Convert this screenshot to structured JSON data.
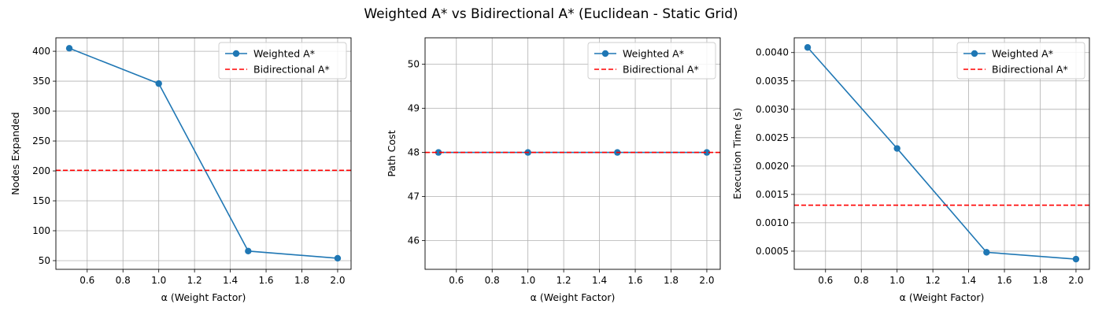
{
  "title": "Weighted A* vs Bidirectional A* (Euclidean - Static Grid)",
  "colors": {
    "weighted": "#1f77b4",
    "bidirectional": "#ff0000",
    "grid": "#b0b0b0"
  },
  "chart_data": [
    {
      "type": "line",
      "xlabel": "α (Weight Factor)",
      "ylabel": "Nodes Expanded",
      "xlim": [
        0.425,
        2.075
      ],
      "ylim": [
        35.5,
        422.5
      ],
      "xticks": [
        0.6,
        0.8,
        1.0,
        1.2,
        1.4,
        1.6,
        1.8,
        2.0
      ],
      "yticks": [
        50,
        100,
        150,
        200,
        250,
        300,
        350,
        400
      ],
      "xtick_labels": [
        "0.6",
        "0.8",
        "1.0",
        "1.2",
        "1.4",
        "1.6",
        "1.8",
        "2.0"
      ],
      "ytick_labels": [
        "50",
        "100",
        "150",
        "200",
        "250",
        "300",
        "350",
        "400"
      ],
      "grid": true,
      "legend_position": "top-right",
      "series": [
        {
          "name": "Weighted A*",
          "style": "solid-marker",
          "x": [
            0.5,
            1.0,
            1.5,
            2.0
          ],
          "y": [
            405,
            346,
            66,
            54
          ]
        },
        {
          "name": "Bidirectional A*",
          "style": "dashed-hline",
          "y": 201
        }
      ]
    },
    {
      "type": "line",
      "xlabel": "α (Weight Factor)",
      "ylabel": "Path Cost",
      "xlim": [
        0.425,
        2.075
      ],
      "ylim": [
        45.35,
        50.6
      ],
      "xticks": [
        0.6,
        0.8,
        1.0,
        1.2,
        1.4,
        1.6,
        1.8,
        2.0
      ],
      "yticks": [
        46,
        47,
        48,
        49,
        50
      ],
      "xtick_labels": [
        "0.6",
        "0.8",
        "1.0",
        "1.2",
        "1.4",
        "1.6",
        "1.8",
        "2.0"
      ],
      "ytick_labels": [
        "46",
        "47",
        "48",
        "49",
        "50"
      ],
      "grid": true,
      "legend_position": "top-right",
      "series": [
        {
          "name": "Weighted A*",
          "style": "solid-marker",
          "x": [
            0.5,
            1.0,
            1.5,
            2.0
          ],
          "y": [
            48,
            48,
            48,
            48
          ]
        },
        {
          "name": "Bidirectional A*",
          "style": "dashed-hline",
          "y": 48
        }
      ]
    },
    {
      "type": "line",
      "xlabel": "α (Weight Factor)",
      "ylabel": "Execution Time (s)",
      "xlim": [
        0.425,
        2.075
      ],
      "ylim": [
        0.00018,
        0.00426
      ],
      "xticks": [
        0.6,
        0.8,
        1.0,
        1.2,
        1.4,
        1.6,
        1.8,
        2.0
      ],
      "yticks": [
        0.0005,
        0.001,
        0.0015,
        0.002,
        0.0025,
        0.003,
        0.0035,
        0.004
      ],
      "xtick_labels": [
        "0.6",
        "0.8",
        "1.0",
        "1.2",
        "1.4",
        "1.6",
        "1.8",
        "2.0"
      ],
      "ytick_labels": [
        "0.0005",
        "0.0010",
        "0.0015",
        "0.0020",
        "0.0025",
        "0.0030",
        "0.0035",
        "0.0040"
      ],
      "grid": true,
      "legend_position": "top-right",
      "series": [
        {
          "name": "Weighted A*",
          "style": "solid-marker",
          "x": [
            0.5,
            1.0,
            1.5,
            2.0
          ],
          "y": [
            0.00409,
            0.00231,
            0.00048,
            0.00036
          ]
        },
        {
          "name": "Bidirectional A*",
          "style": "dashed-hline",
          "y": 0.00131
        }
      ]
    }
  ]
}
